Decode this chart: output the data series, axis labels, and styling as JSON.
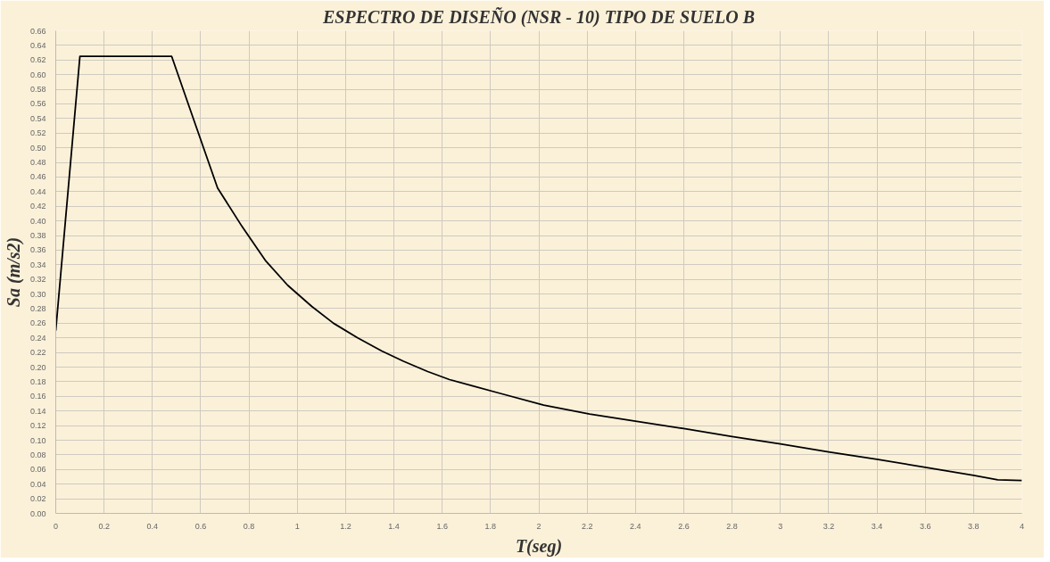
{
  "chart_data": {
    "type": "line",
    "title": "ESPECTRO DE DISEÑO (NSR - 10) TIPO DE SUELO B",
    "xlabel": "T(seg)",
    "ylabel": "Sa (m/s2)",
    "series": [
      {
        "color": "#000000",
        "x": [
          0,
          0.1,
          0.48,
          0.58,
          0.67,
          0.77,
          0.87,
          0.96,
          1.06,
          1.15,
          1.25,
          1.35,
          1.44,
          1.54,
          1.63,
          1.73,
          1.83,
          2.02,
          2.21,
          2.4,
          2.6,
          2.8,
          3.0,
          3.2,
          3.4,
          3.6,
          3.8,
          3.9,
          4.0
        ],
        "values": [
          0.25,
          0.625,
          0.625,
          0.53,
          0.445,
          0.393,
          0.345,
          0.312,
          0.283,
          0.26,
          0.24,
          0.222,
          0.208,
          0.194,
          0.183,
          0.174,
          0.165,
          0.148,
          0.136,
          0.126,
          0.116,
          0.105,
          0.095,
          0.084,
          0.074,
          0.063,
          0.052,
          0.046,
          0.045
        ]
      }
    ],
    "xlim": [
      0,
      4
    ],
    "ylim": [
      0,
      0.66
    ],
    "xticks": [
      0,
      0.2,
      0.4,
      0.6,
      0.8,
      1,
      1.2,
      1.4,
      1.6,
      1.8,
      2,
      2.2,
      2.4,
      2.6,
      2.8,
      3,
      3.2,
      3.4,
      3.6,
      3.8,
      4
    ],
    "yticks": [
      {
        "value": 0,
        "label": "0.00"
      },
      {
        "value": 0.02,
        "label": "0.02"
      },
      {
        "value": 0.04,
        "label": "0.04"
      },
      {
        "value": 0.06,
        "label": "0.06"
      },
      {
        "value": 0.08,
        "label": "0.08"
      },
      {
        "value": 0.1,
        "label": "0.10"
      },
      {
        "value": 0.12,
        "label": "0.12"
      },
      {
        "value": 0.14,
        "label": "0.14"
      },
      {
        "value": 0.16,
        "label": "0.16"
      },
      {
        "value": 0.18,
        "label": "0.18"
      },
      {
        "value": 0.2,
        "label": "0.20"
      },
      {
        "value": 0.22,
        "label": "0.22"
      },
      {
        "value": 0.24,
        "label": "0.24"
      },
      {
        "value": 0.26,
        "label": "0.26"
      },
      {
        "value": 0.28,
        "label": "0.28"
      },
      {
        "value": 0.3,
        "label": "0.30"
      },
      {
        "value": 0.32,
        "label": "0.32"
      },
      {
        "value": 0.34,
        "label": "0.34"
      },
      {
        "value": 0.36,
        "label": "0.36"
      },
      {
        "value": 0.38,
        "label": "0.38"
      },
      {
        "value": 0.4,
        "label": "0.40"
      },
      {
        "value": 0.42,
        "label": "0.42"
      },
      {
        "value": 0.44,
        "label": "0.44"
      },
      {
        "value": 0.46,
        "label": "0.46"
      },
      {
        "value": 0.48,
        "label": "0.48"
      },
      {
        "value": 0.5,
        "label": "0.50"
      },
      {
        "value": 0.52,
        "label": "0.52"
      },
      {
        "value": 0.54,
        "label": "0.54"
      },
      {
        "value": 0.56,
        "label": "0.56"
      },
      {
        "value": 0.58,
        "label": "0.58"
      },
      {
        "value": 0.6,
        "label": "0.60"
      },
      {
        "value": 0.62,
        "label": "0.62"
      },
      {
        "value": 0.64,
        "label": "0.64"
      },
      {
        "value": 0.66,
        "label": "0.66"
      }
    ],
    "grid": true,
    "marker": "none",
    "line_style": "solid"
  }
}
